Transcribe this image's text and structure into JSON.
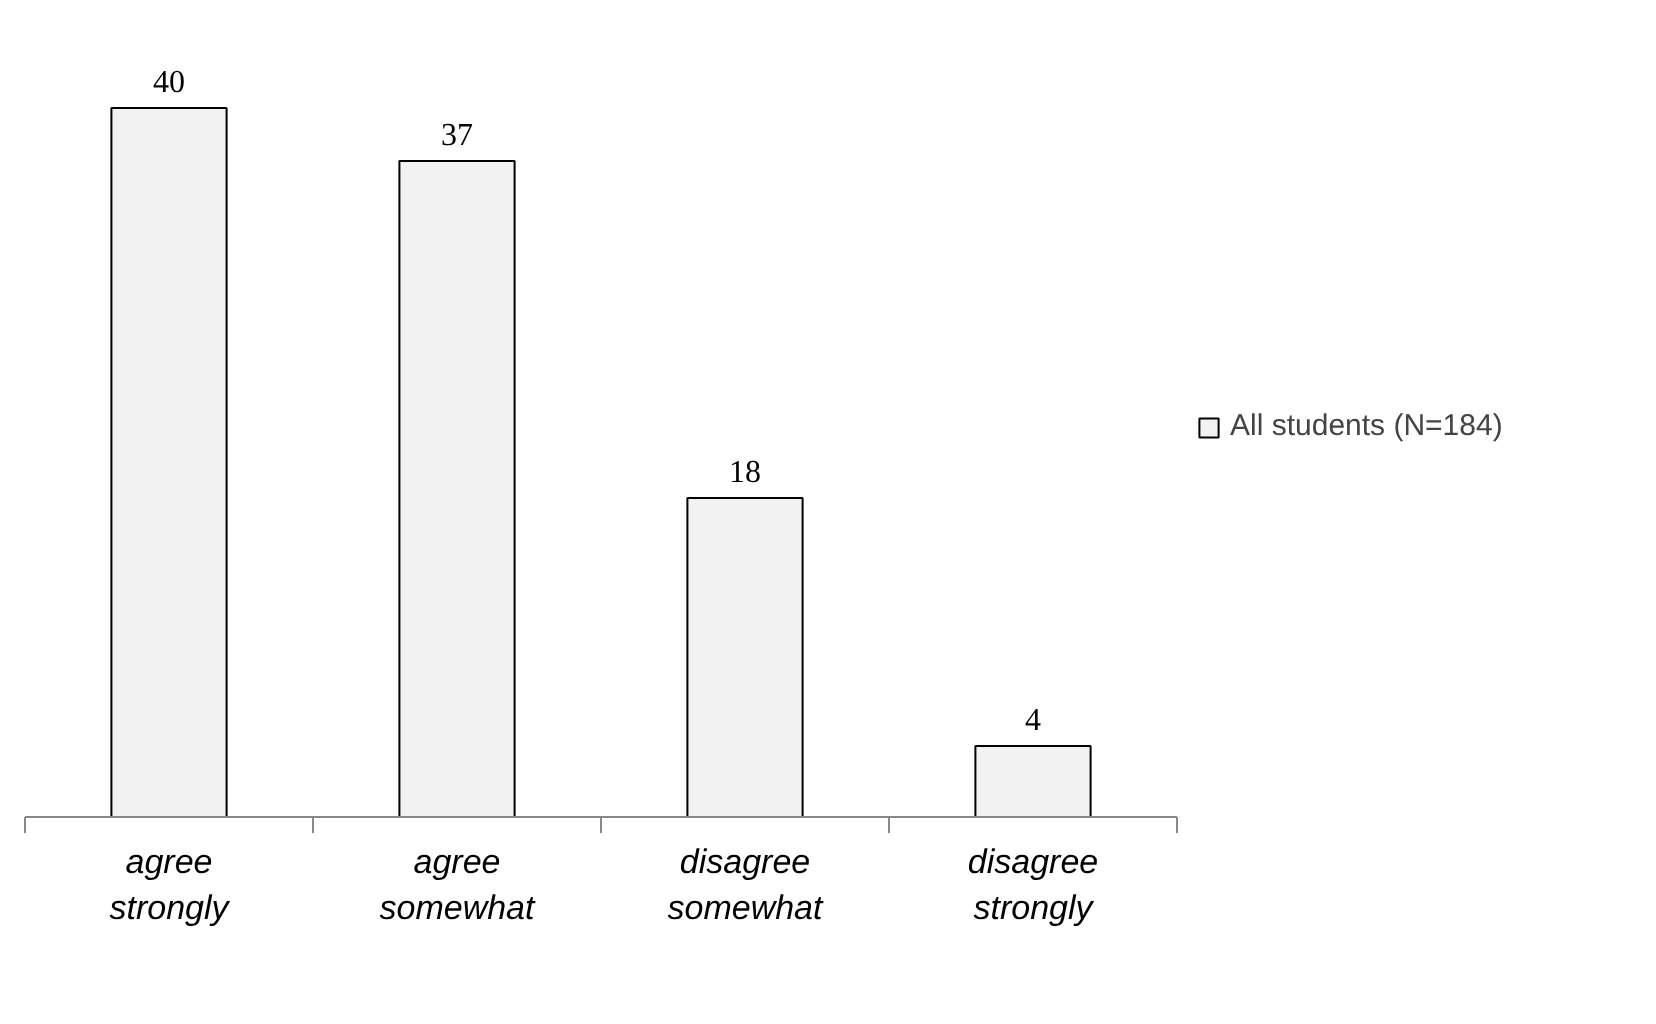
{
  "chart_data": {
    "type": "bar",
    "categories": [
      "agree strongly",
      "agree somewhat",
      "disagree somewhat",
      "disagree strongly"
    ],
    "series": [
      {
        "name": "All students (N=184)",
        "color": "#f2f2f2",
        "values": [
          40,
          37,
          18,
          4
        ]
      }
    ],
    "data_labels": true,
    "legend": "right",
    "grid": false
  }
}
